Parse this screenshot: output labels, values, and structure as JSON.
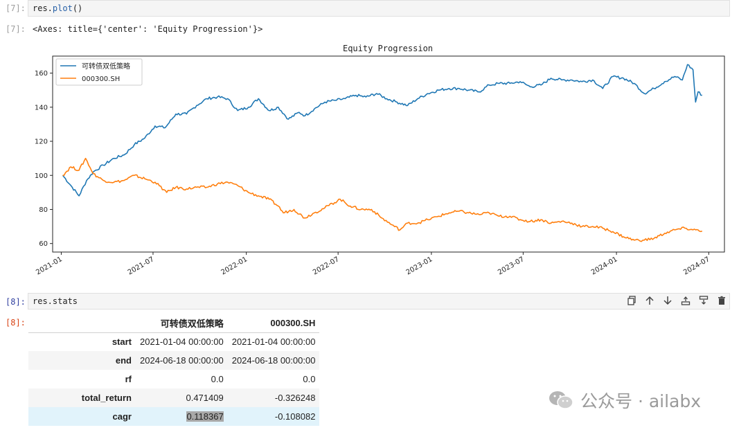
{
  "cells": {
    "c7_prompt": "[7]:",
    "c7_code_obj": "res.",
    "c7_code_fn": "plot",
    "c7_code_paren": "()",
    "c7_out_prompt": "[7]:",
    "c7_out_text": "<Axes: title={'center': 'Equity Progression'}>",
    "c8_prompt": "[8]:",
    "c8_code": "res.stats",
    "c8_out_prompt": "[8]:"
  },
  "toolbar": {
    "copy_icon": "copy-icon",
    "up_icon": "arrow-up-icon",
    "down_icon": "arrow-down-icon",
    "insert_above_icon": "insert-above-icon",
    "insert_below_icon": "insert-below-icon",
    "delete_icon": "trash-icon"
  },
  "chart_data": {
    "type": "line",
    "title": "Equity Progression",
    "xlabel": "",
    "ylabel": "",
    "x_ticks": [
      "2021-01",
      "2021-07",
      "2022-01",
      "2022-07",
      "2023-01",
      "2023-07",
      "2024-01",
      "2024-07"
    ],
    "y_ticks": [
      60,
      80,
      100,
      120,
      140,
      160
    ],
    "ylim": [
      55,
      170
    ],
    "xlim": [
      "2020-12",
      "2024-08"
    ],
    "legend_position": "top-left",
    "grid": false,
    "series": [
      {
        "name": "可转债双低策略",
        "color": "#1f77b4",
        "x": [
          "2021-01-04",
          "2021-01-20",
          "2021-02-05",
          "2021-02-20",
          "2021-03-05",
          "2021-03-25",
          "2021-04-15",
          "2021-05-05",
          "2021-05-25",
          "2021-06-15",
          "2021-07-05",
          "2021-07-25",
          "2021-08-15",
          "2021-09-05",
          "2021-09-25",
          "2021-10-15",
          "2021-11-05",
          "2021-11-25",
          "2021-12-15",
          "2022-01-05",
          "2022-01-25",
          "2022-02-15",
          "2022-03-05",
          "2022-03-25",
          "2022-04-15",
          "2022-04-27",
          "2022-05-15",
          "2022-06-05",
          "2022-06-25",
          "2022-07-15",
          "2022-08-05",
          "2022-08-25",
          "2022-09-15",
          "2022-10-05",
          "2022-10-25",
          "2022-11-15",
          "2022-12-05",
          "2022-12-25",
          "2023-01-15",
          "2023-02-05",
          "2023-02-25",
          "2023-03-15",
          "2023-04-05",
          "2023-04-25",
          "2023-05-15",
          "2023-06-05",
          "2023-06-25",
          "2023-07-15",
          "2023-08-05",
          "2023-08-25",
          "2023-09-15",
          "2023-10-05",
          "2023-10-25",
          "2023-11-15",
          "2023-12-05",
          "2023-12-25",
          "2024-01-15",
          "2024-02-05",
          "2024-02-25",
          "2024-03-15",
          "2024-04-05",
          "2024-04-25",
          "2024-05-10",
          "2024-05-20",
          "2024-05-31",
          "2024-06-05",
          "2024-06-10",
          "2024-06-18"
        ],
        "values": [
          100,
          94,
          88,
          97,
          102,
          106,
          110,
          112,
          118,
          122,
          129,
          128,
          136,
          136,
          141,
          145,
          146,
          145,
          138,
          140,
          145,
          138,
          140,
          133,
          137,
          135,
          139,
          143,
          144,
          145,
          147,
          146,
          148,
          145,
          143,
          141,
          145,
          148,
          150,
          151,
          151,
          150,
          149,
          153,
          154,
          154,
          155,
          152,
          153,
          157,
          156,
          156,
          155,
          156,
          151,
          158,
          157,
          154,
          148,
          151,
          155,
          158,
          156,
          165,
          162,
          143,
          149,
          147
        ]
      },
      {
        "name": "000300.SH",
        "color": "#ff7f0e",
        "x": [
          "2021-01-04",
          "2021-01-20",
          "2021-02-05",
          "2021-02-18",
          "2021-03-05",
          "2021-03-25",
          "2021-04-15",
          "2021-05-05",
          "2021-05-25",
          "2021-06-15",
          "2021-07-05",
          "2021-07-28",
          "2021-08-15",
          "2021-09-05",
          "2021-09-25",
          "2021-10-15",
          "2021-11-05",
          "2021-11-25",
          "2021-12-15",
          "2022-01-05",
          "2022-01-25",
          "2022-02-15",
          "2022-03-05",
          "2022-03-15",
          "2022-04-05",
          "2022-04-26",
          "2022-05-15",
          "2022-06-05",
          "2022-07-05",
          "2022-07-25",
          "2022-08-15",
          "2022-09-05",
          "2022-09-25",
          "2022-10-15",
          "2022-10-31",
          "2022-11-15",
          "2022-12-05",
          "2022-12-25",
          "2023-01-15",
          "2023-02-05",
          "2023-02-25",
          "2023-03-15",
          "2023-04-05",
          "2023-04-25",
          "2023-05-15",
          "2023-06-05",
          "2023-06-25",
          "2023-07-15",
          "2023-08-05",
          "2023-08-25",
          "2023-09-15",
          "2023-10-05",
          "2023-10-25",
          "2023-11-15",
          "2023-12-05",
          "2023-12-25",
          "2024-01-15",
          "2024-02-05",
          "2024-02-25",
          "2024-03-15",
          "2024-04-05",
          "2024-04-25",
          "2024-05-15",
          "2024-05-31",
          "2024-06-10",
          "2024-06-18"
        ],
        "values": [
          100,
          105,
          103,
          110,
          101,
          97,
          96,
          97,
          100,
          98,
          96,
          90,
          93,
          92,
          93,
          93,
          95,
          96,
          94,
          90,
          88,
          86,
          82,
          78,
          80,
          75,
          78,
          81,
          86,
          82,
          80,
          80,
          75,
          71,
          68,
          72,
          72,
          74,
          76,
          78,
          79,
          78,
          77,
          78,
          76,
          76,
          74,
          73,
          74,
          72,
          73,
          72,
          70,
          70,
          69,
          67,
          64,
          62,
          62,
          63,
          66,
          68,
          69,
          68,
          68,
          67.3
        ]
      }
    ]
  },
  "stats_table": {
    "columns": [
      "可转债双低策略",
      "000300.SH"
    ],
    "rows": [
      {
        "label": "start",
        "v1": "2021-01-04 00:00:00",
        "v2": "2021-01-04 00:00:00"
      },
      {
        "label": "end",
        "v1": "2024-06-18 00:00:00",
        "v2": "2024-06-18 00:00:00"
      },
      {
        "label": "rf",
        "v1": "0.0",
        "v2": "0.0"
      },
      {
        "label": "total_return",
        "v1": "0.471409",
        "v2": "-0.326248"
      },
      {
        "label": "cagr",
        "v1": "0.118367",
        "v2": "-0.108082"
      }
    ]
  },
  "watermark": {
    "text": "公众号 · ailabx",
    "icon": "wechat-icon"
  }
}
